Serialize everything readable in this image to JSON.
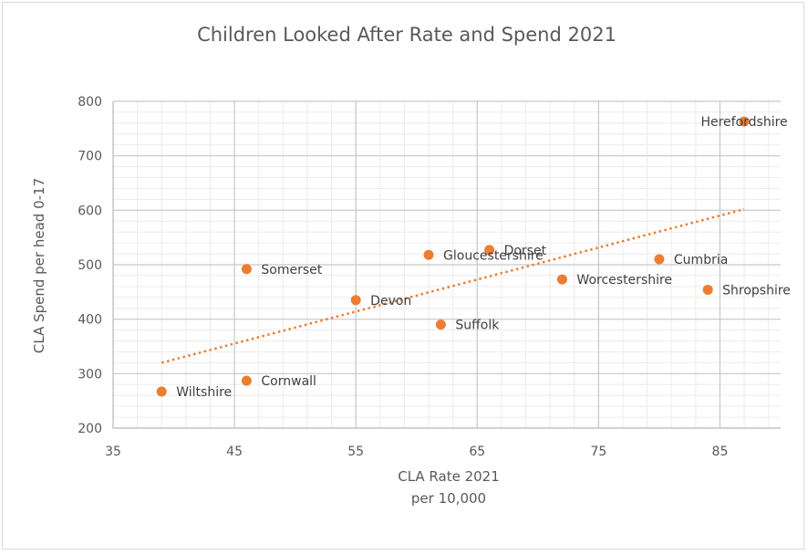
{
  "chart_data": {
    "type": "scatter",
    "title": "Children Looked After Rate and Spend 2021",
    "xlabel": [
      "CLA Rate 2021",
      "per 10,000"
    ],
    "ylabel": "CLA Spend  per head  0-17",
    "xlim": [
      35,
      90
    ],
    "ylim": [
      200,
      800
    ],
    "x_ticks": [
      35,
      45,
      55,
      65,
      75,
      85
    ],
    "y_ticks": [
      200,
      300,
      400,
      500,
      600,
      700,
      800
    ],
    "grid": true,
    "legend": "none",
    "marker_color": "#ED7D31",
    "trendline": {
      "type": "linear",
      "style": "dotted",
      "x_start": 39,
      "y_start": 320,
      "x_end": 87,
      "y_end": 602
    },
    "points": [
      {
        "label": "Herefordshire",
        "x": 87,
        "y": 763
      },
      {
        "label": "Dorset",
        "x": 66,
        "y": 527
      },
      {
        "label": "Gloucestershire",
        "x": 61,
        "y": 518
      },
      {
        "label": "Cumbria",
        "x": 80,
        "y": 510
      },
      {
        "label": "Somerset",
        "x": 46,
        "y": 492
      },
      {
        "label": "Worcestershire",
        "x": 72,
        "y": 473
      },
      {
        "label": "Shropshire",
        "x": 84,
        "y": 454
      },
      {
        "label": "Devon",
        "x": 55,
        "y": 435
      },
      {
        "label": "Suffolk",
        "x": 62,
        "y": 390
      },
      {
        "label": "Cornwall",
        "x": 46,
        "y": 287
      },
      {
        "label": "Wiltshire",
        "x": 39,
        "y": 267
      }
    ]
  }
}
